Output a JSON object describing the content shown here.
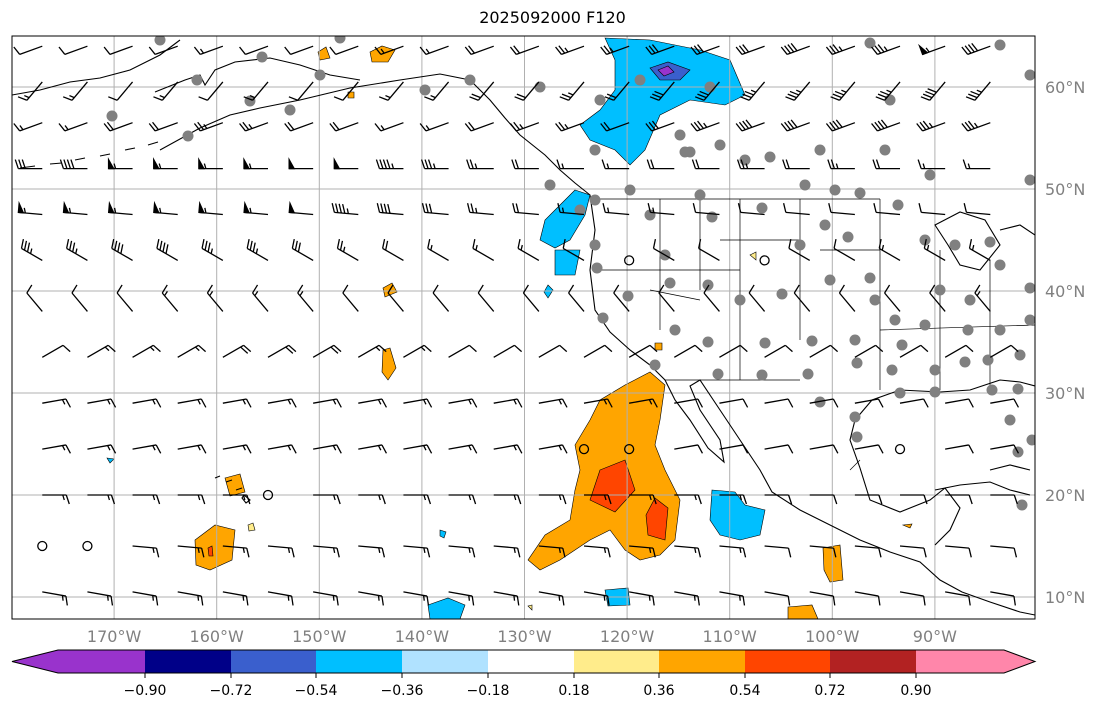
{
  "title": "2025092000 F120",
  "map": {
    "lon_range": [
      -180,
      -80
    ],
    "lat_range": [
      7.8,
      65
    ],
    "lon_ticks": [
      {
        "lon": -170,
        "label": "170°W"
      },
      {
        "lon": -160,
        "label": "160°W"
      },
      {
        "lon": -150,
        "label": "150°W"
      },
      {
        "lon": -140,
        "label": "140°W"
      },
      {
        "lon": -130,
        "label": "130°W"
      },
      {
        "lon": -120,
        "label": "120°W"
      },
      {
        "lon": -110,
        "label": "110°W"
      },
      {
        "lon": -100,
        "label": "100°W"
      },
      {
        "lon": -90,
        "label": "90°W"
      }
    ],
    "lat_ticks": [
      {
        "lat": 60,
        "label": "60°N"
      },
      {
        "lat": 50,
        "label": "50°N"
      },
      {
        "lat": 40,
        "label": "40°N"
      },
      {
        "lat": 30,
        "label": "30°N"
      },
      {
        "lat": 20,
        "label": "20°N"
      },
      {
        "lat": 10,
        "label": "10°N"
      }
    ],
    "wind_barbs": {
      "lon_start": -177,
      "lon_step": 4.4,
      "rows": [
        {
          "lat": 64,
          "dir": 250,
          "spd": [
            10,
            10,
            10,
            10,
            15,
            10,
            10,
            10,
            15,
            15,
            20,
            20,
            25,
            25,
            30,
            30,
            30,
            40,
            35,
            35,
            55,
            40
          ]
        },
        {
          "lat": 60.5,
          "dir": 220,
          "spd": [
            15,
            15,
            10,
            15,
            10,
            15,
            10,
            10,
            15,
            15,
            20,
            20,
            25,
            20,
            30,
            30,
            35,
            35,
            35,
            35,
            40,
            35
          ]
        },
        {
          "lat": 56.5,
          "dir": 250,
          "spd": [
            15,
            15,
            20,
            20,
            25,
            25,
            20,
            20,
            15,
            15,
            20,
            25,
            25,
            20,
            30,
            35,
            40,
            40,
            40,
            40,
            35,
            35
          ]
        },
        {
          "lat": 52,
          "dir": 270,
          "spd": [
            30,
            40,
            55,
            55,
            55,
            55,
            50,
            50,
            45,
            35,
            25,
            20,
            15,
            15,
            20,
            20,
            25,
            20,
            25,
            20,
            15,
            15
          ]
        },
        {
          "lat": 47.5,
          "dir": 275,
          "spd": [
            55,
            55,
            55,
            55,
            55,
            55,
            50,
            45,
            40,
            30,
            25,
            20,
            15,
            15,
            15,
            10,
            10,
            10,
            10,
            10,
            10,
            10
          ]
        },
        {
          "lat": 43,
          "dir": 300,
          "spd": [
            35,
            35,
            40,
            40,
            35,
            35,
            30,
            25,
            20,
            15,
            15,
            15,
            10,
            0,
            10,
            10,
            0,
            10,
            10,
            15,
            15,
            15
          ]
        },
        {
          "lat": 38,
          "dir": 320,
          "spd": [
            10,
            10,
            10,
            15,
            15,
            15,
            15,
            10,
            10,
            10,
            10,
            10,
            10,
            10,
            10,
            10,
            10,
            10,
            10,
            10,
            10,
            15
          ]
        },
        {
          "lat": 33.5,
          "dir": 60,
          "spd": [
            10,
            15,
            15,
            15,
            20,
            20,
            20,
            15,
            15,
            10,
            10,
            10,
            10,
            10,
            10,
            10,
            10,
            10,
            10,
            10,
            10,
            10
          ]
        },
        {
          "lat": 29,
          "dir": 80,
          "spd": [
            15,
            15,
            15,
            15,
            15,
            15,
            15,
            15,
            15,
            15,
            15,
            15,
            15,
            15,
            10,
            10,
            10,
            10,
            10,
            10,
            10,
            10
          ]
        },
        {
          "lat": 24.5,
          "dir": 80,
          "spd": [
            15,
            15,
            15,
            15,
            15,
            15,
            15,
            15,
            15,
            15,
            15,
            15,
            0,
            0,
            10,
            10,
            10,
            10,
            10,
            0,
            10,
            10
          ]
        },
        {
          "lat": 20,
          "dir": 90,
          "spd": [
            15,
            15,
            15,
            15,
            15,
            0,
            15,
            15,
            15,
            15,
            15,
            15,
            15,
            15,
            15,
            15,
            10,
            10,
            10,
            10,
            10,
            10
          ]
        },
        {
          "lat": 15,
          "dir": 95,
          "spd": [
            0,
            0,
            15,
            15,
            15,
            15,
            15,
            15,
            15,
            15,
            15,
            15,
            15,
            15,
            15,
            15,
            10,
            10,
            10,
            10,
            10,
            10
          ]
        },
        {
          "lat": 10.5,
          "dir": 100,
          "spd": [
            15,
            15,
            15,
            15,
            15,
            15,
            15,
            15,
            15,
            15,
            15,
            15,
            15,
            15,
            15,
            15,
            10,
            10,
            10,
            10,
            10,
            10
          ]
        }
      ]
    }
  },
  "colorbar": {
    "levels": [
      "−0.90",
      "−0.72",
      "−0.54",
      "−0.36",
      "−0.18",
      "0.18",
      "0.36",
      "0.54",
      "0.72",
      "0.90"
    ],
    "colors": [
      "#9933cc",
      "#000088",
      "#3a5fcd",
      "#00bfff",
      "#b0e2ff",
      "#ffffff",
      "#ffec8b",
      "#ffa500",
      "#ff4500",
      "#b22222",
      "#ff86aa"
    ]
  }
}
